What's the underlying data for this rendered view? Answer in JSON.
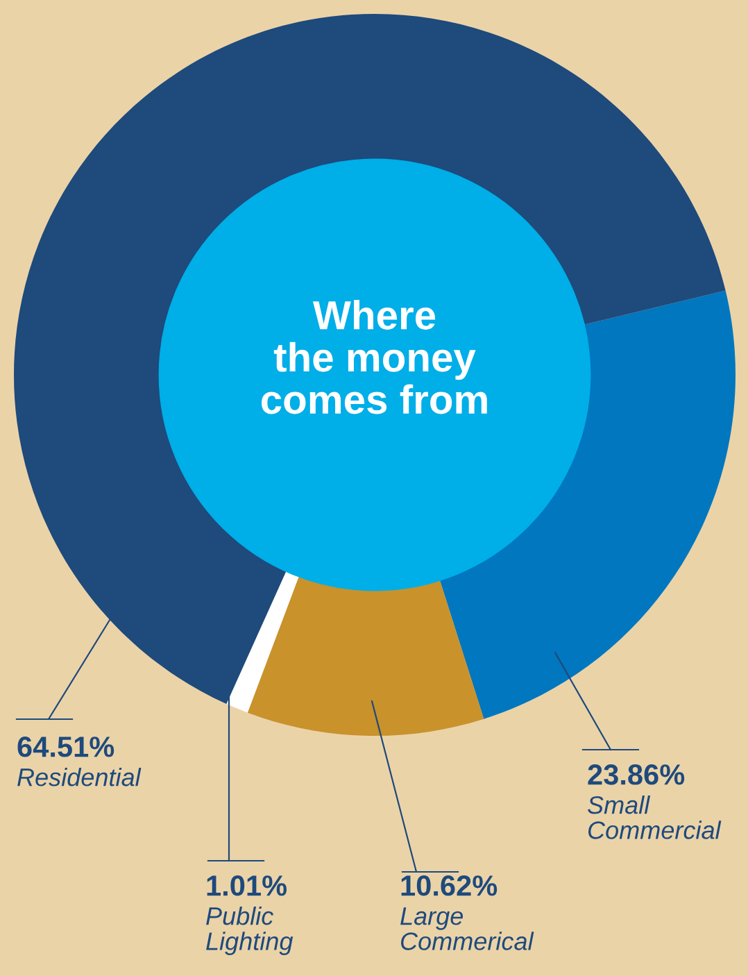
{
  "chart_data": {
    "type": "donut",
    "title": "Where\nthe money\ncomes from",
    "categories": [
      "Small Commercial",
      "Large Commerical",
      "Public Lighting",
      "Residential"
    ],
    "values": [
      23.86,
      10.62,
      1.01,
      64.51
    ],
    "value_labels": [
      "23.86%",
      "10.62%",
      "1.01%",
      "64.51%"
    ],
    "colors": [
      "#0077bf",
      "#c9922b",
      "#ffffff",
      "#1e4a7c"
    ]
  }
}
